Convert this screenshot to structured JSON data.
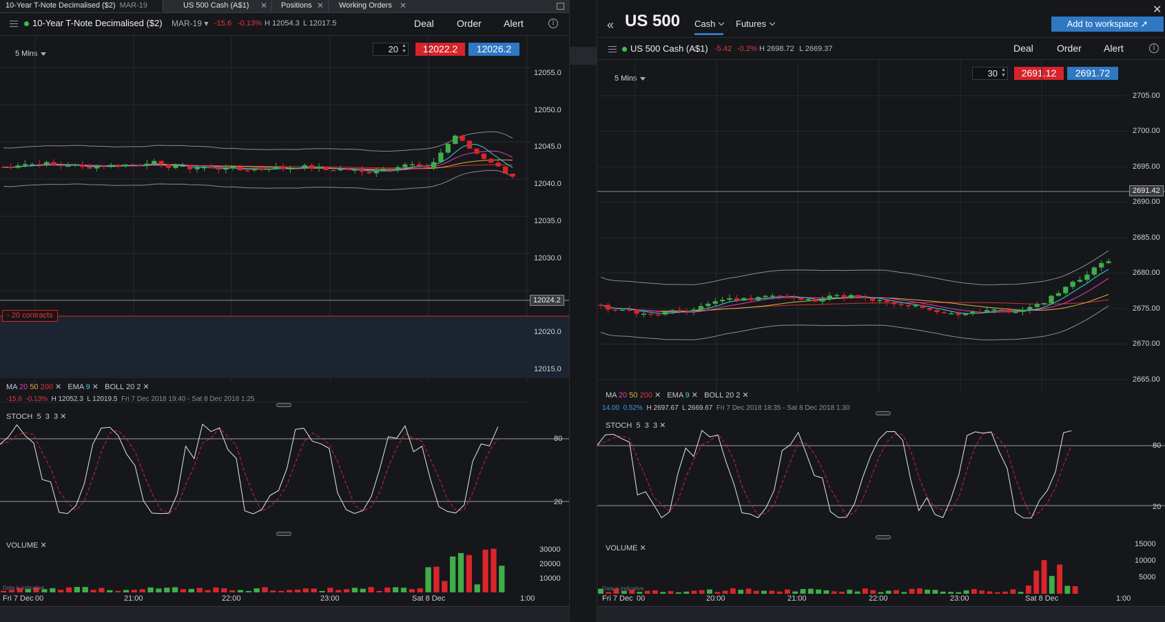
{
  "tabs": [
    {
      "label": "10-Year T-Note Decimalised ($2)",
      "sub": "MAR-19"
    },
    {
      "label": "US 500 Cash (A$1)",
      "sub": ""
    },
    {
      "label": "Positions",
      "sub": ""
    },
    {
      "label": "Working Orders",
      "sub": ""
    }
  ],
  "left": {
    "instrument": "10-Year T-Note Decimalised ($2)",
    "expiry": "MAR-19",
    "change": "-15.6",
    "change_pct": "-0.13%",
    "high": "H 12054.3",
    "low": "L 12017.5",
    "actions": {
      "deal": "Deal",
      "order": "Order",
      "alert": "Alert"
    },
    "timeframe": "5 Mins",
    "qty": "20",
    "sell": "12022.2",
    "buy": "12026.2",
    "price_tag": "12024.2",
    "contracts": "- 20 contracts",
    "y_ticks": [
      "12055.0",
      "12050.0",
      "12045.0",
      "12040.0",
      "12035.0",
      "12030.0",
      "12020.0",
      "12015.0"
    ],
    "legend": {
      "ma": "MA",
      "ma1": "20",
      "ma2": "50",
      "ma3": "200",
      "ema": "EMA",
      "ema1": "9",
      "boll": "BOLL",
      "boll1": "20",
      "boll2": "2"
    },
    "summary": {
      "chg": "-15.6",
      "pct": "-0.13%",
      "high": "H 12052.3",
      "low": "L 12019.5",
      "range": "Fri 7 Dec 2018 19:40 - Sat 8 Dec 2018 1:25"
    },
    "stoch": {
      "label": "STOCH",
      "p1": "5",
      "p2": "3",
      "p3": "3",
      "hi": "80",
      "lo": "20"
    },
    "volume": {
      "label": "VOLUME",
      "ticks": [
        "30000",
        "20000",
        "10000"
      ],
      "note": "Data is indicative"
    },
    "x_ticks": [
      "Fri 7 Dec",
      "00",
      "21:00",
      "22:00",
      "23:00",
      "Sat 8 Dec",
      "1:00"
    ]
  },
  "right": {
    "title": "US 500",
    "nav": {
      "cash": "Cash",
      "futures": "Futures"
    },
    "add": "Add to workspace",
    "instrument": "US 500 Cash (A$1)",
    "change": "-5.42",
    "change_pct": "-0.2%",
    "high": "H 2698.72",
    "low": "L 2669.37",
    "actions": {
      "deal": "Deal",
      "order": "Order",
      "alert": "Alert"
    },
    "timeframe": "5 Mins",
    "qty": "30",
    "sell": "2691.12",
    "buy": "2691.72",
    "price_tag": "2691.42",
    "y_ticks": [
      "2705.00",
      "2700.00",
      "2695.00",
      "2690.00",
      "2685.00",
      "2680.00",
      "2675.00",
      "2670.00",
      "2665.00"
    ],
    "legend": {
      "ma": "MA",
      "ma1": "20",
      "ma2": "50",
      "ma3": "200",
      "ema": "EMA",
      "ema1": "9",
      "boll": "BOLL",
      "boll1": "20",
      "boll2": "2"
    },
    "summary": {
      "chg": "14.00",
      "pct": "0.52%",
      "high": "H 2697.67",
      "low": "L 2669.67",
      "range": "Fri 7 Dec 2018 18:35 - Sat 8 Dec 2018 1:30"
    },
    "stoch": {
      "label": "STOCH",
      "p1": "5",
      "p2": "3",
      "p3": "3",
      "hi": "80",
      "lo": "20"
    },
    "volume": {
      "label": "VOLUME",
      "ticks": [
        "15000",
        "10000",
        "5000"
      ],
      "note": "Data is indicative"
    },
    "x_ticks": [
      "Fri 7 Dec",
      "00",
      "20:00",
      "21:00",
      "22:00",
      "23:00",
      "Sat 8 Dec",
      "1:00"
    ]
  },
  "colors": {
    "up": "#3fae49",
    "down": "#d9252b",
    "ma20": "#e33fb6",
    "ma50": "#e2b43c",
    "ma200": "#d0343a",
    "ema": "#3fd3e0",
    "boll": "#8a8c92"
  }
}
